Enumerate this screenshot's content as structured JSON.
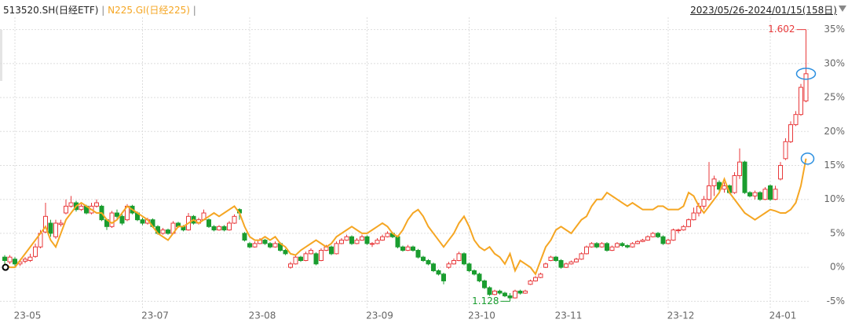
{
  "chart_data": {
    "type": "candlestick",
    "legend": [
      {
        "name": "513520.SH(日经ETF)",
        "color": "#222222"
      },
      {
        "name": "N225.GI(日经225)",
        "color": "#f5a623"
      }
    ],
    "separator": "|",
    "date_range": "2023/05/26-2024/01/15(158日)",
    "up_color": "#e8393b",
    "down_color": "#1a9d2f",
    "line_color": "#f5a623",
    "marker_color": "#2b8fe0",
    "max_label": "1.602",
    "min_label": "1.128",
    "ylim": [
      -6,
      36
    ],
    "yticks": [
      {
        "value": -5,
        "label": "-5%"
      },
      {
        "value": 0,
        "label": "0%"
      },
      {
        "value": 5,
        "label": "5%"
      },
      {
        "value": 10,
        "label": "10%"
      },
      {
        "value": 15,
        "label": "15%"
      },
      {
        "value": 20,
        "label": "20%"
      },
      {
        "value": 25,
        "label": "25%"
      },
      {
        "value": 30,
        "label": "30%"
      },
      {
        "value": 35,
        "label": "35%"
      }
    ],
    "xticks": [
      {
        "value": 2,
        "label": "23-05"
      },
      {
        "value": 27,
        "label": "23-07"
      },
      {
        "value": 48,
        "label": "23-08"
      },
      {
        "value": 71,
        "label": "23-09"
      },
      {
        "value": 91,
        "label": "23-10"
      },
      {
        "value": 108,
        "label": "23-11"
      },
      {
        "value": 130,
        "label": "23-12"
      },
      {
        "value": 150,
        "label": "24-01"
      }
    ],
    "grid": true,
    "candles": [
      [
        1.5,
        1.8,
        0.3,
        1.0
      ],
      [
        0.8,
        1.8,
        0.5,
        1.5
      ],
      [
        1.2,
        1.5,
        0.2,
        0.5
      ],
      [
        0.5,
        1.2,
        0.2,
        0.8
      ],
      [
        0.9,
        1.5,
        0.6,
        1.2
      ],
      [
        1.0,
        2.0,
        0.8,
        1.5
      ],
      [
        1.6,
        3.5,
        1.4,
        3.0
      ],
      [
        3.0,
        5.5,
        2.8,
        5.0
      ],
      [
        5.2,
        9.5,
        5.0,
        7.5
      ],
      [
        6.5,
        7.0,
        4.5,
        5.0
      ],
      [
        4.5,
        7.0,
        4.2,
        6.5
      ],
      [
        6.3,
        7.0,
        6.0,
        6.5
      ],
      [
        8.0,
        10.0,
        7.8,
        9.0
      ],
      [
        9.0,
        10.5,
        8.8,
        9.5
      ],
      [
        9.5,
        9.8,
        8.2,
        8.5
      ],
      [
        8.5,
        9.3,
        8.3,
        9.0
      ],
      [
        9.0,
        9.2,
        7.8,
        8.0
      ],
      [
        8.0,
        9.5,
        7.8,
        9.0
      ],
      [
        9.0,
        10.0,
        8.8,
        9.5
      ],
      [
        9.0,
        9.2,
        6.8,
        7.0
      ],
      [
        7.0,
        7.2,
        5.5,
        6.0
      ],
      [
        6.0,
        8.3,
        5.8,
        8.0
      ],
      [
        8.0,
        8.5,
        7.2,
        7.5
      ],
      [
        7.5,
        7.8,
        6.2,
        6.5
      ],
      [
        7.0,
        9.3,
        6.8,
        9.0
      ],
      [
        9.0,
        9.2,
        7.8,
        8.0
      ],
      [
        8.0,
        8.2,
        6.8,
        7.0
      ],
      [
        7.0,
        7.3,
        6.2,
        6.5
      ],
      [
        6.5,
        7.3,
        6.3,
        7.0
      ],
      [
        7.0,
        7.2,
        5.8,
        6.0
      ],
      [
        6.0,
        6.2,
        4.8,
        5.0
      ],
      [
        5.0,
        5.8,
        4.8,
        5.5
      ],
      [
        5.5,
        5.7,
        4.8,
        5.0
      ],
      [
        5.0,
        6.8,
        4.9,
        6.5
      ],
      [
        6.5,
        6.7,
        5.8,
        6.0
      ],
      [
        6.0,
        6.2,
        5.3,
        5.5
      ],
      [
        5.5,
        8.0,
        5.4,
        7.5
      ],
      [
        7.5,
        7.7,
        6.3,
        6.5
      ],
      [
        6.5,
        7.3,
        6.3,
        7.0
      ],
      [
        7.0,
        8.5,
        6.9,
        8.0
      ],
      [
        7.0,
        7.2,
        5.8,
        6.0
      ],
      [
        6.0,
        6.2,
        5.3,
        5.5
      ],
      [
        5.5,
        6.2,
        5.4,
        6.0
      ],
      [
        6.0,
        6.2,
        5.3,
        5.5
      ],
      [
        5.5,
        6.8,
        5.4,
        6.5
      ],
      [
        6.5,
        7.8,
        6.4,
        7.5
      ],
      [
        8.5,
        8.7,
        7.0,
        8.0
      ],
      [
        5.0,
        5.2,
        3.8,
        4.0
      ],
      [
        3.5,
        3.7,
        2.8,
        3.0
      ],
      [
        3.0,
        3.8,
        2.9,
        3.5
      ],
      [
        3.5,
        4.3,
        3.4,
        4.0
      ],
      [
        4.0,
        4.2,
        3.3,
        3.5
      ],
      [
        3.5,
        3.7,
        2.8,
        3.0
      ],
      [
        3.0,
        3.8,
        2.9,
        3.5
      ],
      [
        3.5,
        3.7,
        2.3,
        2.5
      ],
      [
        2.5,
        2.7,
        1.8,
        2.0
      ],
      [
        0.0,
        0.8,
        -0.2,
        0.5
      ],
      [
        0.5,
        1.8,
        0.4,
        1.5
      ],
      [
        1.5,
        1.7,
        0.8,
        1.0
      ],
      [
        1.0,
        2.3,
        0.9,
        2.0
      ],
      [
        2.0,
        2.8,
        1.9,
        2.5
      ],
      [
        2.0,
        2.2,
        0.3,
        0.5
      ],
      [
        1.0,
        2.8,
        0.9,
        2.5
      ],
      [
        2.5,
        3.3,
        2.4,
        3.0
      ],
      [
        3.0,
        3.2,
        1.8,
        2.0
      ],
      [
        2.0,
        3.8,
        1.9,
        3.5
      ],
      [
        3.5,
        4.3,
        3.4,
        4.0
      ],
      [
        4.0,
        4.8,
        3.9,
        4.5
      ],
      [
        4.5,
        4.7,
        3.3,
        3.5
      ],
      [
        3.5,
        4.3,
        3.4,
        4.0
      ],
      [
        4.0,
        4.8,
        3.9,
        4.5
      ],
      [
        4.5,
        4.7,
        3.3,
        3.5
      ],
      [
        3.5,
        3.7,
        3.0,
        3.5
      ],
      [
        3.5,
        4.3,
        3.4,
        4.0
      ],
      [
        4.0,
        4.8,
        3.9,
        4.5
      ],
      [
        4.5,
        5.3,
        4.4,
        5.0
      ],
      [
        5.0,
        5.2,
        4.3,
        4.5
      ],
      [
        4.5,
        4.7,
        2.8,
        3.0
      ],
      [
        3.0,
        3.2,
        2.3,
        2.5
      ],
      [
        2.5,
        3.3,
        2.4,
        3.0
      ],
      [
        3.0,
        3.2,
        2.3,
        2.5
      ],
      [
        2.5,
        2.7,
        1.3,
        1.5
      ],
      [
        1.5,
        1.7,
        0.8,
        1.0
      ],
      [
        1.0,
        1.2,
        0.3,
        0.5
      ],
      [
        0.5,
        0.7,
        -0.7,
        -0.5
      ],
      [
        -0.5,
        -0.3,
        -1.2,
        -1.0
      ],
      [
        -1.0,
        -0.8,
        -2.5,
        -2.0
      ],
      [
        0.0,
        0.8,
        -0.2,
        0.5
      ],
      [
        0.5,
        1.3,
        0.4,
        1.0
      ],
      [
        1.0,
        2.3,
        0.9,
        2.0
      ],
      [
        2.0,
        2.2,
        0.3,
        0.5
      ],
      [
        0.5,
        0.7,
        -0.7,
        -0.5
      ],
      [
        -0.5,
        -0.3,
        -1.2,
        -1.0
      ],
      [
        -1.0,
        -0.8,
        -2.2,
        -2.0
      ],
      [
        -2.0,
        -1.8,
        -3.2,
        -3.0
      ],
      [
        -3.0,
        -2.8,
        -4.2,
        -4.0
      ],
      [
        -4.0,
        -3.3,
        -4.1,
        -3.5
      ],
      [
        -3.5,
        -3.3,
        -4.0,
        -3.8
      ],
      [
        -3.8,
        -3.6,
        -4.4,
        -4.2
      ],
      [
        -4.2,
        -3.8,
        -5.0,
        -4.5
      ],
      [
        -4.5,
        -3.3,
        -4.6,
        -3.5
      ],
      [
        -3.5,
        -3.3,
        -4.0,
        -3.8
      ],
      [
        -3.8,
        -3.3,
        -3.9,
        -3.5
      ],
      [
        -2.5,
        -1.8,
        -2.6,
        -2.0
      ],
      [
        -2.0,
        -1.3,
        -2.1,
        -1.5
      ],
      [
        -1.5,
        -0.8,
        -1.6,
        -1.0
      ],
      [
        0.0,
        0.7,
        -0.1,
        0.5
      ],
      [
        1.0,
        1.7,
        0.9,
        1.5
      ],
      [
        1.5,
        1.7,
        0.8,
        1.0
      ],
      [
        1.0,
        1.2,
        -0.2,
        0.0
      ],
      [
        0.0,
        0.7,
        -0.1,
        0.5
      ],
      [
        0.5,
        1.0,
        0.4,
        0.8
      ],
      [
        0.8,
        1.4,
        0.7,
        1.2
      ],
      [
        1.2,
        2.2,
        1.1,
        2.0
      ],
      [
        2.0,
        3.2,
        1.9,
        3.0
      ],
      [
        3.0,
        3.7,
        2.9,
        3.5
      ],
      [
        3.5,
        3.7,
        2.8,
        3.0
      ],
      [
        3.0,
        3.7,
        2.9,
        3.5
      ],
      [
        3.5,
        3.7,
        2.3,
        2.5
      ],
      [
        2.5,
        3.2,
        2.4,
        3.0
      ],
      [
        3.0,
        3.7,
        2.9,
        3.5
      ],
      [
        3.5,
        3.7,
        3.0,
        3.2
      ],
      [
        3.2,
        3.4,
        2.8,
        3.0
      ],
      [
        3.0,
        3.7,
        2.9,
        3.5
      ],
      [
        3.5,
        4.0,
        3.4,
        3.8
      ],
      [
        3.8,
        4.2,
        3.7,
        4.0
      ],
      [
        4.0,
        4.7,
        3.9,
        4.5
      ],
      [
        4.5,
        5.2,
        4.4,
        5.0
      ],
      [
        5.0,
        5.2,
        4.3,
        4.5
      ],
      [
        4.5,
        4.7,
        3.3,
        3.5
      ],
      [
        3.5,
        4.2,
        3.4,
        4.0
      ],
      [
        4.0,
        5.7,
        3.9,
        5.5
      ],
      [
        5.5,
        5.7,
        5.0,
        5.5
      ],
      [
        5.5,
        6.2,
        5.4,
        6.0
      ],
      [
        6.0,
        7.2,
        5.9,
        7.0
      ],
      [
        7.0,
        8.8,
        6.9,
        8.0
      ],
      [
        8.0,
        9.5,
        7.5,
        9.0
      ],
      [
        9.0,
        10.5,
        8.5,
        10.0
      ],
      [
        10.0,
        15.5,
        9.8,
        12.0
      ],
      [
        12.0,
        13.5,
        10.5,
        13.0
      ],
      [
        12.5,
        12.8,
        11.0,
        11.5
      ],
      [
        11.5,
        12.5,
        11.0,
        12.0
      ],
      [
        12.0,
        12.2,
        10.8,
        11.0
      ],
      [
        11.0,
        14.0,
        10.8,
        13.5
      ],
      [
        13.5,
        17.5,
        13.0,
        15.5
      ],
      [
        15.5,
        15.7,
        10.8,
        11.0
      ],
      [
        11.0,
        11.2,
        10.3,
        10.5
      ],
      [
        10.5,
        11.3,
        10.0,
        11.0
      ],
      [
        11.0,
        11.2,
        9.8,
        10.0
      ],
      [
        10.0,
        11.8,
        9.9,
        11.5
      ],
      [
        12.0,
        12.2,
        9.8,
        10.0
      ],
      [
        10.0,
        12.0,
        9.9,
        11.5
      ],
      [
        13.0,
        15.5,
        12.8,
        15.0
      ],
      [
        16.0,
        19.0,
        15.8,
        18.5
      ],
      [
        18.5,
        21.5,
        18.3,
        21.0
      ],
      [
        21.0,
        23.0,
        20.8,
        22.5
      ],
      [
        22.5,
        27.0,
        22.3,
        26.5
      ],
      [
        24.5,
        35.0,
        24.3,
        28.5
      ]
    ],
    "line": [
      0.5,
      0,
      0,
      1,
      2,
      3,
      4,
      5,
      6,
      4,
      3,
      5,
      7,
      8,
      9,
      9.5,
      9,
      8.5,
      8,
      8,
      7,
      6.5,
      7,
      8,
      9,
      8.5,
      8,
      7.5,
      7,
      6,
      5,
      4.5,
      4,
      5,
      6,
      6,
      6.5,
      7,
      6.5,
      7,
      7.5,
      8,
      7.5,
      8,
      8.5,
      9,
      8,
      6,
      4.5,
      4,
      4,
      4.5,
      4,
      4.5,
      3.5,
      3,
      2,
      1.8,
      2.5,
      3,
      3.5,
      4,
      3.5,
      3,
      3.5,
      4.5,
      5,
      5.5,
      6,
      5.5,
      5,
      5,
      5.5,
      6,
      6.5,
      6,
      5,
      4.5,
      5.5,
      7,
      8,
      8.5,
      7.5,
      6,
      5,
      4,
      3,
      4,
      5,
      6.5,
      7.5,
      6,
      4,
      3,
      2.5,
      3,
      2,
      1.5,
      0.5,
      2,
      -0.5,
      1,
      0.5,
      0,
      -1,
      1,
      3,
      4,
      5.5,
      6,
      5.5,
      5,
      6,
      7,
      7.5,
      9,
      10,
      10,
      11,
      10.5,
      10,
      9.5,
      9,
      9.5,
      9,
      8.5,
      8.5,
      8.5,
      9,
      9,
      8.5,
      8.5,
      8.5,
      9,
      11,
      10.5,
      9,
      8,
      9,
      10,
      11,
      13,
      11,
      10,
      9,
      8,
      7.5,
      7,
      7.5,
      8,
      8.5,
      8.3,
      8,
      8,
      8.5,
      9.5,
      12,
      16
    ]
  }
}
